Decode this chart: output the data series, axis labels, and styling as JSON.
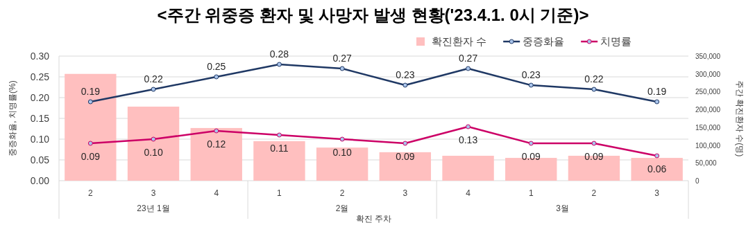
{
  "chart_data": {
    "type": "bar",
    "title": "<주간 위중증 환자 및 사망자 발생 현황('23.4.1. 0시 기준)>",
    "categories": [
      "2",
      "3",
      "4",
      "1",
      "2",
      "3",
      "4",
      "1",
      "2",
      "3"
    ],
    "annotations": [
      "23년 1월",
      "2월",
      "3월"
    ],
    "xlabel": "확진 주차",
    "ylabel": "중증화율, 치명률(%)",
    "y2label": "주간 확진환자 수(명)",
    "series": [
      {
        "name": "확진환자 수",
        "axis": "y2",
        "color": "#ffbfbf",
        "values": [
          300000,
          208000,
          148000,
          111000,
          93000,
          80000,
          70000,
          64000,
          70000,
          64000
        ]
      },
      {
        "name": "중증화율",
        "type": "line",
        "color": "#1f3864",
        "values": [
          0.19,
          0.22,
          0.25,
          0.28,
          0.27,
          0.23,
          0.27,
          0.23,
          0.22,
          0.19
        ],
        "value_labels": [
          "0.19",
          "0.22",
          "0.25",
          "0.28",
          "0.27",
          "0.23",
          "0.27",
          "0.23",
          "0.22",
          "0.19"
        ]
      },
      {
        "name": "치명률",
        "type": "line",
        "color": "#cc0066",
        "values": [
          0.09,
          0.1,
          0.12,
          0.11,
          0.1,
          0.09,
          0.13,
          0.09,
          0.09,
          0.06
        ],
        "value_labels": [
          "0.09",
          "0.10",
          "0.12",
          "0.11",
          "0.10",
          "0.09",
          "0.13",
          "0.09",
          "0.09",
          "0.06"
        ]
      }
    ],
    "ylim": [
      0,
      0.3
    ],
    "yticks": [
      {
        "value": 0,
        "label": "0.00"
      },
      {
        "value": 0.05,
        "label": "0.05"
      },
      {
        "value": 0.1,
        "label": "0.10"
      },
      {
        "value": 0.15,
        "label": "0.15"
      },
      {
        "value": 0.2,
        "label": "0.20"
      },
      {
        "value": 0.25,
        "label": "0.25"
      },
      {
        "value": 0.3,
        "label": "0.30"
      }
    ],
    "y2lim": [
      0,
      350000
    ],
    "y2ticks": [
      0,
      {
        "value": 50000,
        "label": "50,000"
      },
      {
        "value": 100000,
        "label": "100,000"
      },
      {
        "value": 150000,
        "label": "150,000"
      },
      {
        "value": 200000,
        "label": "200,000"
      },
      {
        "value": 250000,
        "label": "250,000"
      },
      {
        "value": 300000,
        "label": "300,000"
      },
      {
        "value": 350000,
        "label": "350,000"
      }
    ],
    "grid": "y",
    "legend": "top right",
    "marker": "circle",
    "line_style": "solid"
  }
}
